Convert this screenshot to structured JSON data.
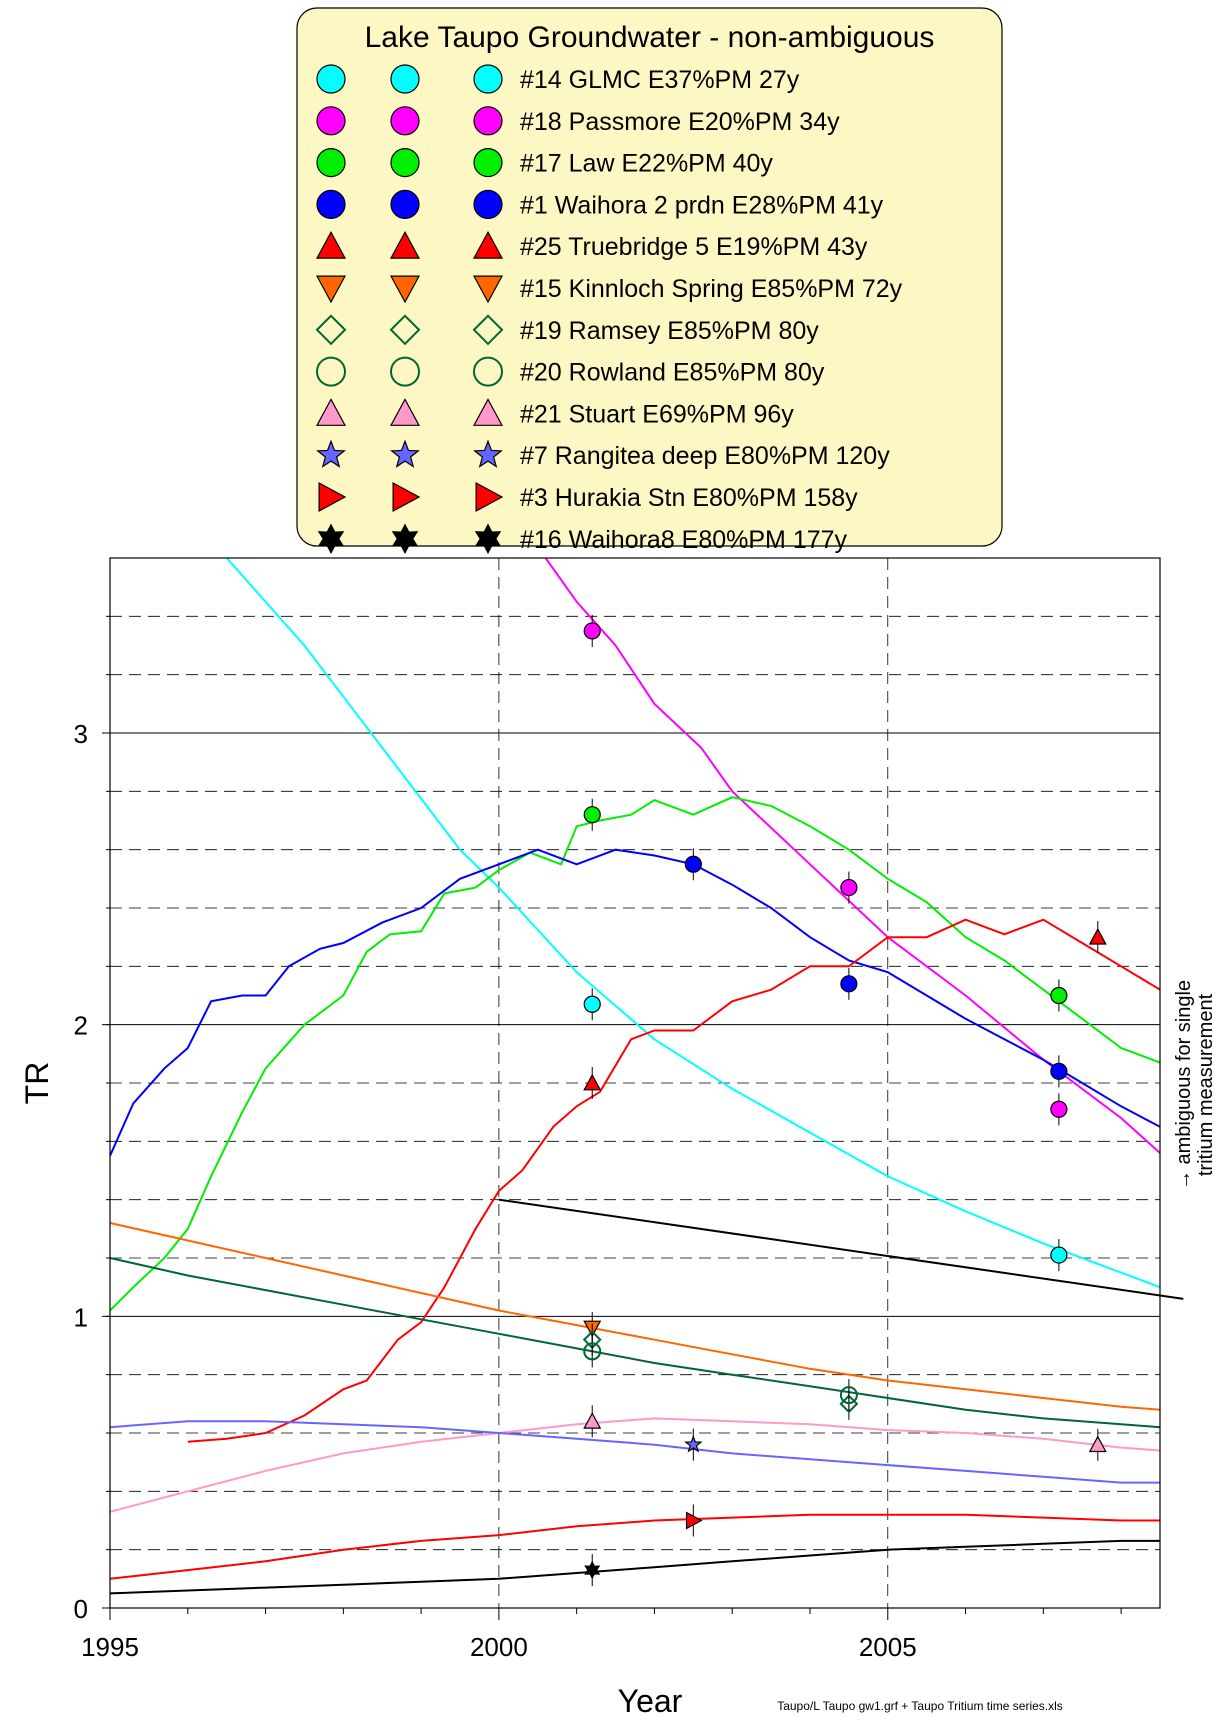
{
  "chart_data": {
    "type": "line",
    "title": "",
    "xlabel": "Year",
    "ylabel": "TR",
    "xlim": [
      1995,
      2008.5
    ],
    "ylim": [
      0,
      3.6
    ],
    "xticks": [
      1995,
      2000,
      2005
    ],
    "yticks": [
      0,
      1,
      2,
      3
    ],
    "grid": "solid at integer TR, dashed every 0.2 TR and at 2000 and 2005",
    "legend": {
      "title": "Lake Taupo Groundwater - non-ambiguous",
      "placement": "top-center",
      "background": "#fdf7c3",
      "entries": [
        {
          "label": "#14 GLMC E37%PM 27y",
          "marker": "circle",
          "color": "#00ffff",
          "filled": true
        },
        {
          "label": "#18 Passmore E20%PM 34y",
          "marker": "circle",
          "color": "#ff00ff",
          "filled": true
        },
        {
          "label": "#17 Law E22%PM 40y",
          "marker": "circle",
          "color": "#00ee00",
          "filled": true
        },
        {
          "label": "#1 Waihora 2 prdn E28%PM 41y",
          "marker": "circle",
          "color": "#0000ff",
          "filled": true
        },
        {
          "label": "#25 Truebridge 5 E19%PM 43y",
          "marker": "triangle-up",
          "color": "#ff0000",
          "filled": true
        },
        {
          "label": "#15 Kinnloch Spring E85%PM 72y",
          "marker": "triangle-down",
          "color": "#ff6600",
          "filled": true
        },
        {
          "label": "#19 Ramsey E85%PM 80y",
          "marker": "diamond",
          "color": "#006633",
          "filled": false
        },
        {
          "label": "#20 Rowland E85%PM 80y",
          "marker": "circle",
          "color": "#006633",
          "filled": false
        },
        {
          "label": "#21 Stuart E69%PM 96y",
          "marker": "triangle-up",
          "color": "#ff99cc",
          "filled": true
        },
        {
          "label": "#7 Rangitea deep E80%PM 120y",
          "marker": "star",
          "color": "#6666ff",
          "filled": true
        },
        {
          "label": "#3 Hurakia Stn E80%PM 158y",
          "marker": "triangle-right",
          "color": "#ff0000",
          "filled": true
        },
        {
          "label": "#16 Waihora8 E80%PM 177y",
          "marker": "star6",
          "color": "#000000",
          "filled": true
        }
      ]
    },
    "series": [
      {
        "name": "#14 GLMC E37%PM 27y",
        "color": "#00ffff",
        "line": [
          [
            1996.5,
            3.6
          ],
          [
            1997.5,
            3.3
          ],
          [
            1998.5,
            2.95
          ],
          [
            1999.5,
            2.6
          ],
          [
            2000,
            2.47
          ],
          [
            2001,
            2.18
          ],
          [
            2002,
            1.95
          ],
          [
            2003,
            1.78
          ],
          [
            2004,
            1.63
          ],
          [
            2005,
            1.48
          ],
          [
            2006,
            1.36
          ],
          [
            2007,
            1.25
          ],
          [
            2008,
            1.15
          ],
          [
            2008.5,
            1.1
          ]
        ],
        "points": [
          [
            2001.2,
            2.07
          ],
          [
            2007.2,
            1.21
          ]
        ]
      },
      {
        "name": "#18 Passmore E20%PM 34y",
        "color": "#ff00ff",
        "line": [
          [
            2000.6,
            3.6
          ],
          [
            2001,
            3.45
          ],
          [
            2001.5,
            3.3
          ],
          [
            2002,
            3.1
          ],
          [
            2002.6,
            2.95
          ],
          [
            2003,
            2.8
          ],
          [
            2004,
            2.55
          ],
          [
            2005,
            2.3
          ],
          [
            2006,
            2.1
          ],
          [
            2007,
            1.88
          ],
          [
            2008,
            1.68
          ],
          [
            2008.5,
            1.56
          ]
        ],
        "points": [
          [
            2001.2,
            3.35
          ],
          [
            2004.5,
            2.47
          ],
          [
            2007.2,
            1.71
          ]
        ]
      },
      {
        "name": "#17 Law E22%PM 40y",
        "color": "#00ee00",
        "line": [
          [
            1995,
            1.02
          ],
          [
            1995.3,
            1.1
          ],
          [
            1995.7,
            1.2
          ],
          [
            1996,
            1.3
          ],
          [
            1996.3,
            1.48
          ],
          [
            1996.7,
            1.7
          ],
          [
            1997,
            1.85
          ],
          [
            1997.5,
            2.0
          ],
          [
            1998,
            2.1
          ],
          [
            1998.3,
            2.25
          ],
          [
            1998.6,
            2.31
          ],
          [
            1999,
            2.32
          ],
          [
            1999.3,
            2.45
          ],
          [
            1999.7,
            2.47
          ],
          [
            2000,
            2.53
          ],
          [
            2000.4,
            2.59
          ],
          [
            2000.8,
            2.55
          ],
          [
            2001,
            2.68
          ],
          [
            2001.3,
            2.7
          ],
          [
            2001.7,
            2.72
          ],
          [
            2002,
            2.77
          ],
          [
            2002.5,
            2.72
          ],
          [
            2003,
            2.78
          ],
          [
            2003.5,
            2.75
          ],
          [
            2004,
            2.68
          ],
          [
            2004.5,
            2.6
          ],
          [
            2005,
            2.5
          ],
          [
            2005.5,
            2.42
          ],
          [
            2006,
            2.3
          ],
          [
            2006.5,
            2.22
          ],
          [
            2007,
            2.12
          ],
          [
            2007.5,
            2.02
          ],
          [
            2008,
            1.92
          ],
          [
            2008.5,
            1.87
          ]
        ],
        "points": [
          [
            2001.2,
            2.72
          ],
          [
            2007.2,
            2.1
          ]
        ]
      },
      {
        "name": "#1 Waihora 2 prdn E28%PM 41y",
        "color": "#0000ff",
        "line": [
          [
            1995,
            1.55
          ],
          [
            1995.3,
            1.73
          ],
          [
            1995.7,
            1.85
          ],
          [
            1996,
            1.92
          ],
          [
            1996.3,
            2.08
          ],
          [
            1996.7,
            2.1
          ],
          [
            1997,
            2.1
          ],
          [
            1997.3,
            2.2
          ],
          [
            1997.7,
            2.26
          ],
          [
            1998,
            2.28
          ],
          [
            1998.5,
            2.35
          ],
          [
            1999,
            2.4
          ],
          [
            1999.5,
            2.5
          ],
          [
            2000,
            2.55
          ],
          [
            2000.5,
            2.6
          ],
          [
            2001,
            2.55
          ],
          [
            2001.5,
            2.6
          ],
          [
            2002,
            2.58
          ],
          [
            2002.5,
            2.55
          ],
          [
            2003,
            2.48
          ],
          [
            2003.5,
            2.4
          ],
          [
            2004,
            2.3
          ],
          [
            2004.5,
            2.22
          ],
          [
            2005,
            2.18
          ],
          [
            2005.5,
            2.1
          ],
          [
            2006,
            2.02
          ],
          [
            2006.5,
            1.95
          ],
          [
            2007,
            1.88
          ],
          [
            2007.5,
            1.8
          ],
          [
            2008,
            1.72
          ],
          [
            2008.5,
            1.65
          ]
        ],
        "points": [
          [
            2002.5,
            2.55
          ],
          [
            2004.5,
            2.14
          ],
          [
            2007.2,
            1.84
          ]
        ]
      },
      {
        "name": "#25 Truebridge 5 E19%PM 43y",
        "color": "#ff0000",
        "line": [
          [
            1996,
            0.57
          ],
          [
            1996.5,
            0.58
          ],
          [
            1997,
            0.6
          ],
          [
            1997.5,
            0.66
          ],
          [
            1998,
            0.75
          ],
          [
            1998.3,
            0.78
          ],
          [
            1998.7,
            0.92
          ],
          [
            1999,
            0.98
          ],
          [
            1999.3,
            1.1
          ],
          [
            1999.7,
            1.3
          ],
          [
            2000,
            1.43
          ],
          [
            2000.3,
            1.5
          ],
          [
            2000.7,
            1.65
          ],
          [
            2001,
            1.72
          ],
          [
            2001.3,
            1.77
          ],
          [
            2001.7,
            1.95
          ],
          [
            2002,
            1.98
          ],
          [
            2002.5,
            1.98
          ],
          [
            2003,
            2.08
          ],
          [
            2003.5,
            2.12
          ],
          [
            2004,
            2.2
          ],
          [
            2004.5,
            2.2
          ],
          [
            2005,
            2.3
          ],
          [
            2005.5,
            2.3
          ],
          [
            2006,
            2.36
          ],
          [
            2006.5,
            2.31
          ],
          [
            2007,
            2.36
          ],
          [
            2007.5,
            2.28
          ],
          [
            2008,
            2.2
          ],
          [
            2008.5,
            2.12
          ]
        ],
        "points": [
          [
            2001.2,
            1.8
          ],
          [
            2007.7,
            2.3
          ]
        ]
      },
      {
        "name": "#15 Kinnloch Spring E85%PM 72y",
        "color": "#ff6600",
        "line": [
          [
            1995,
            1.32
          ],
          [
            1996,
            1.26
          ],
          [
            1997,
            1.2
          ],
          [
            1998,
            1.14
          ],
          [
            1999,
            1.08
          ],
          [
            2000,
            1.02
          ],
          [
            2001,
            0.97
          ],
          [
            2002,
            0.92
          ],
          [
            2003,
            0.87
          ],
          [
            2004,
            0.82
          ],
          [
            2005,
            0.78
          ],
          [
            2006,
            0.75
          ],
          [
            2007,
            0.72
          ],
          [
            2008,
            0.69
          ],
          [
            2008.5,
            0.68
          ]
        ],
        "points": [
          [
            2001.2,
            0.96
          ]
        ]
      },
      {
        "name": "#19 Ramsey E85%PM 80y",
        "color": "#006633",
        "line": [
          [
            1995,
            1.2
          ],
          [
            1996,
            1.14
          ],
          [
            1997,
            1.09
          ],
          [
            1998,
            1.04
          ],
          [
            1999,
            0.99
          ],
          [
            2000,
            0.94
          ],
          [
            2001,
            0.89
          ],
          [
            2002,
            0.84
          ],
          [
            2003,
            0.8
          ],
          [
            2004,
            0.76
          ],
          [
            2005,
            0.72
          ],
          [
            2006,
            0.68
          ],
          [
            2007,
            0.65
          ],
          [
            2008,
            0.63
          ],
          [
            2008.5,
            0.62
          ]
        ],
        "points": [
          [
            2001.2,
            0.92
          ],
          [
            2004.5,
            0.7
          ]
        ]
      },
      {
        "name": "#20 Rowland E85%PM 80y",
        "color": "#006633",
        "line": [],
        "points": [
          [
            2001.2,
            0.88
          ],
          [
            2004.5,
            0.73
          ]
        ]
      },
      {
        "name": "#21 Stuart E69%PM 96y",
        "color": "#ff99cc",
        "line": [
          [
            1995,
            0.33
          ],
          [
            1996,
            0.4
          ],
          [
            1997,
            0.47
          ],
          [
            1998,
            0.53
          ],
          [
            1999,
            0.57
          ],
          [
            2000,
            0.6
          ],
          [
            2001,
            0.63
          ],
          [
            2002,
            0.65
          ],
          [
            2003,
            0.64
          ],
          [
            2004,
            0.63
          ],
          [
            2005,
            0.61
          ],
          [
            2006,
            0.6
          ],
          [
            2007,
            0.58
          ],
          [
            2008,
            0.55
          ],
          [
            2008.5,
            0.54
          ]
        ],
        "points": [
          [
            2001.2,
            0.64
          ],
          [
            2007.7,
            0.56
          ]
        ]
      },
      {
        "name": "#7 Rangitea deep E80%PM 120y",
        "color": "#6666ff",
        "line": [
          [
            1995,
            0.62
          ],
          [
            1996,
            0.64
          ],
          [
            1997,
            0.64
          ],
          [
            1998,
            0.63
          ],
          [
            1999,
            0.62
          ],
          [
            2000,
            0.6
          ],
          [
            2001,
            0.58
          ],
          [
            2002,
            0.56
          ],
          [
            2003,
            0.53
          ],
          [
            2004,
            0.51
          ],
          [
            2005,
            0.49
          ],
          [
            2006,
            0.47
          ],
          [
            2007,
            0.45
          ],
          [
            2008,
            0.43
          ],
          [
            2008.5,
            0.43
          ]
        ],
        "points": [
          [
            2002.5,
            0.56
          ]
        ]
      },
      {
        "name": "#3 Hurakia Stn E80%PM 158y",
        "color": "#ff0000",
        "line": [
          [
            1995,
            0.1
          ],
          [
            1996,
            0.13
          ],
          [
            1997,
            0.16
          ],
          [
            1998,
            0.2
          ],
          [
            1999,
            0.23
          ],
          [
            2000,
            0.25
          ],
          [
            2001,
            0.28
          ],
          [
            2002,
            0.3
          ],
          [
            2003,
            0.31
          ],
          [
            2004,
            0.32
          ],
          [
            2005,
            0.32
          ],
          [
            2006,
            0.32
          ],
          [
            2007,
            0.31
          ],
          [
            2008,
            0.3
          ],
          [
            2008.5,
            0.3
          ]
        ],
        "points": [
          [
            2002.5,
            0.3
          ]
        ]
      },
      {
        "name": "#16 Waihora8 E80%PM 177y",
        "color": "#000000",
        "line": [
          [
            1995,
            0.05
          ],
          [
            1996,
            0.06
          ],
          [
            1997,
            0.07
          ],
          [
            1998,
            0.08
          ],
          [
            1999,
            0.09
          ],
          [
            2000,
            0.1
          ],
          [
            2001,
            0.12
          ],
          [
            2002,
            0.14
          ],
          [
            2003,
            0.16
          ],
          [
            2004,
            0.18
          ],
          [
            2005,
            0.2
          ],
          [
            2006,
            0.21
          ],
          [
            2007,
            0.22
          ],
          [
            2008,
            0.23
          ],
          [
            2008.5,
            0.23
          ]
        ],
        "points": [
          [
            2001.2,
            0.13
          ]
        ]
      }
    ],
    "annotations": [
      {
        "text": "→ ambiguous for single",
        "orientation": "vertical"
      },
      {
        "text": "tritium measurement",
        "orientation": "vertical"
      },
      {
        "type": "line",
        "from": [
          2000,
          1.4
        ],
        "to": [
          2008.8,
          1.06
        ],
        "color": "#000000"
      }
    ],
    "footer": "Taupo/L Taupo gw1.grf + Taupo Tritium time series.xls"
  }
}
